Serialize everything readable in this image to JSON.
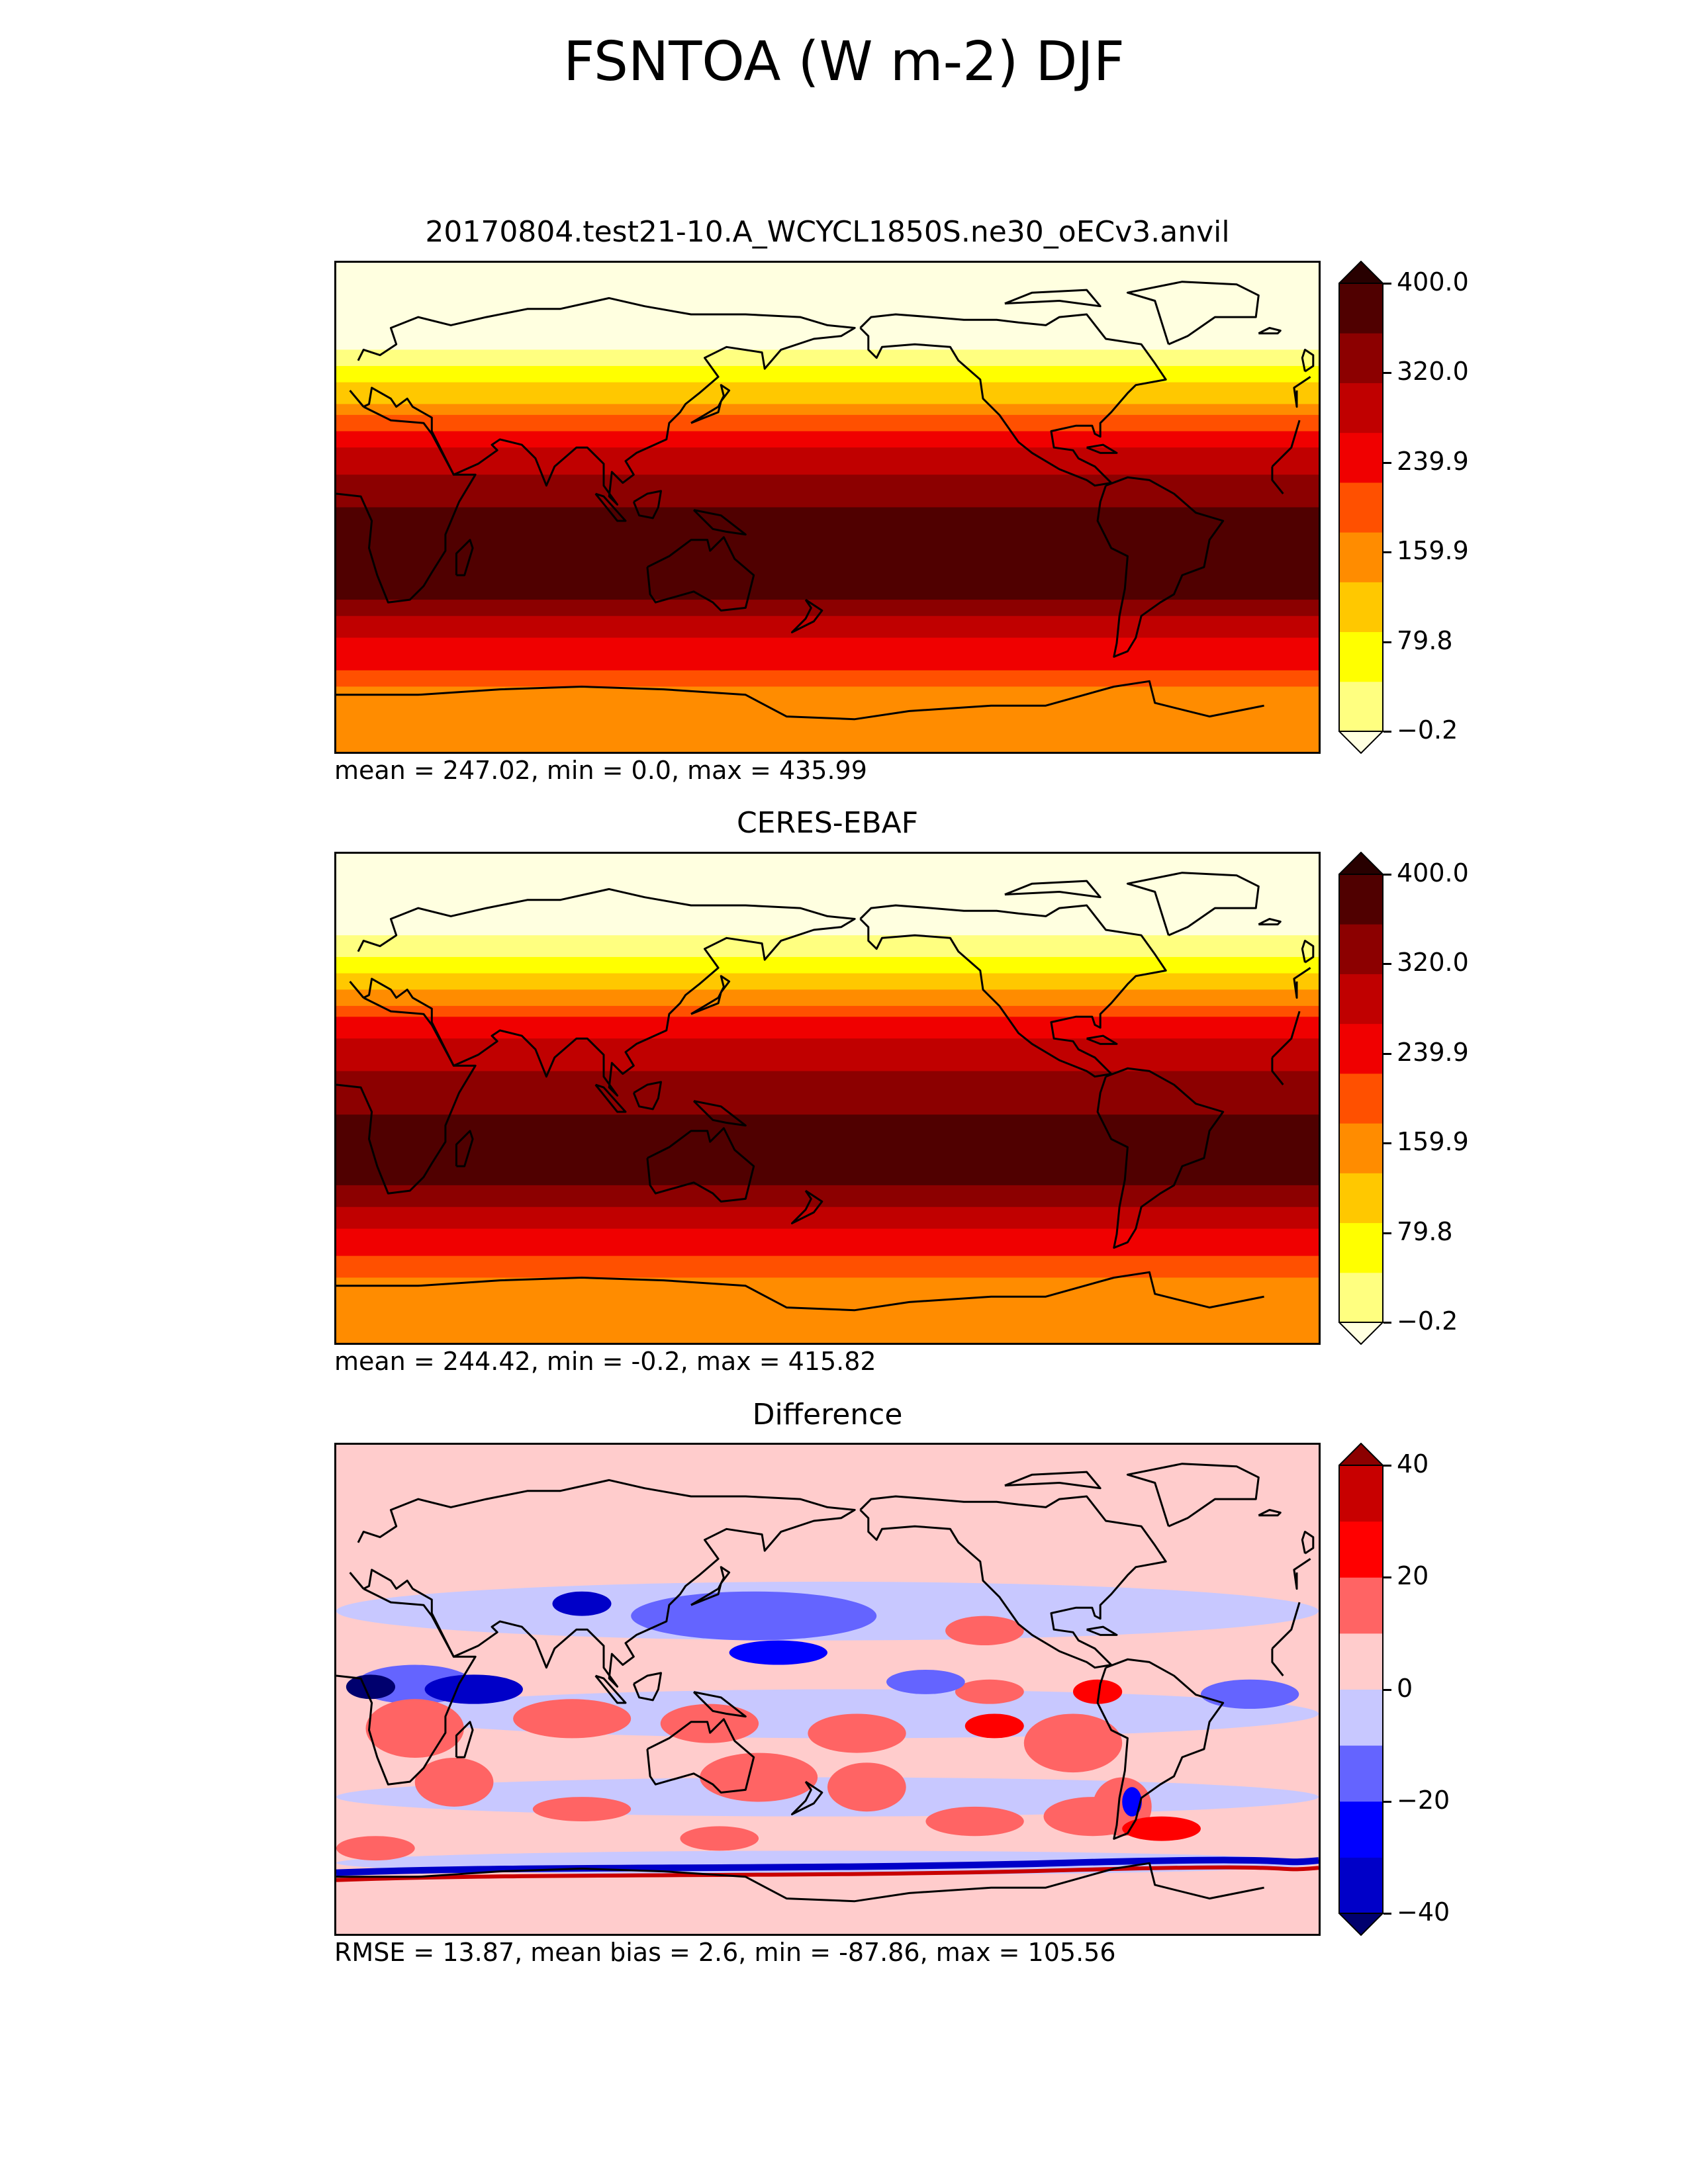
{
  "title": "FSNTOA (W m-2) DJF",
  "chart_data": [
    {
      "type": "heatmap",
      "title": "20170804.test21-10.A_WCYCL1850S.ne30_oECv3.anvil",
      "stats": "mean = 247.02, min = 0.0, max = 435.99",
      "colorbar": {
        "levels": [
          -0.2,
          39.8,
          79.8,
          119.9,
          159.9,
          199.9,
          239.9,
          279.9,
          320.0,
          360.0,
          400.0
        ],
        "ticks": [
          "400.0",
          "320.0",
          "239.9",
          "159.9",
          "79.8",
          "−0.2"
        ],
        "extend": "both"
      },
      "colors": [
        "#ffffe0",
        "#ffff80",
        "#ffff00",
        "#ffc800",
        "#ff8c00",
        "#ff5000",
        "#f00000",
        "#c00000",
        "#8c0000",
        "#500000",
        "#280000"
      ],
      "zonal_profile": [
        {
          "lat": 90,
          "value": 0
        },
        {
          "lat": 70,
          "value": 0
        },
        {
          "lat": 60,
          "value": 30
        },
        {
          "lat": 50,
          "value": 90
        },
        {
          "lat": 40,
          "value": 150
        },
        {
          "lat": 30,
          "value": 230
        },
        {
          "lat": 20,
          "value": 290
        },
        {
          "lat": 10,
          "value": 330
        },
        {
          "lat": 0,
          "value": 360
        },
        {
          "lat": -10,
          "value": 380
        },
        {
          "lat": -20,
          "value": 400
        },
        {
          "lat": -30,
          "value": 380
        },
        {
          "lat": -40,
          "value": 320
        },
        {
          "lat": -50,
          "value": 270
        },
        {
          "lat": -60,
          "value": 240
        },
        {
          "lat": -70,
          "value": 180
        },
        {
          "lat": -90,
          "value": 170
        }
      ]
    },
    {
      "type": "heatmap",
      "title": "CERES-EBAF",
      "stats": "mean = 244.42, min = -0.2, max = 415.82",
      "colorbar": {
        "levels": [
          -0.2,
          39.8,
          79.8,
          119.9,
          159.9,
          199.9,
          239.9,
          279.9,
          320.0,
          360.0,
          400.0
        ],
        "ticks": [
          "400.0",
          "320.0",
          "239.9",
          "159.9",
          "79.8",
          "−0.2"
        ],
        "extend": "both"
      },
      "colors": [
        "#ffffe0",
        "#ffff80",
        "#ffff00",
        "#ffc800",
        "#ff8c00",
        "#ff5000",
        "#f00000",
        "#c00000",
        "#8c0000",
        "#500000",
        "#280000"
      ],
      "zonal_profile": [
        {
          "lat": 90,
          "value": 0
        },
        {
          "lat": 70,
          "value": 0
        },
        {
          "lat": 60,
          "value": 40
        },
        {
          "lat": 50,
          "value": 95
        },
        {
          "lat": 40,
          "value": 160
        },
        {
          "lat": 30,
          "value": 235
        },
        {
          "lat": 20,
          "value": 290
        },
        {
          "lat": 10,
          "value": 320
        },
        {
          "lat": 0,
          "value": 345
        },
        {
          "lat": -10,
          "value": 370
        },
        {
          "lat": -20,
          "value": 390
        },
        {
          "lat": -30,
          "value": 375
        },
        {
          "lat": -40,
          "value": 320
        },
        {
          "lat": -50,
          "value": 270
        },
        {
          "lat": -60,
          "value": 230
        },
        {
          "lat": -70,
          "value": 175
        },
        {
          "lat": -90,
          "value": 170
        }
      ]
    },
    {
      "type": "heatmap",
      "title": "Difference",
      "stats": "RMSE = 13.87, mean bias = 2.6, min = -87.86, max = 105.56",
      "colorbar": {
        "levels": [
          -50,
          -40,
          -30,
          -20,
          -10,
          0,
          10,
          20,
          30,
          40,
          50
        ],
        "ticks": [
          "40",
          "20",
          "0",
          "−20",
          "−40"
        ],
        "extend": "both"
      },
      "colors": [
        "#00006e",
        "#0000c8",
        "#0000ff",
        "#6464ff",
        "#c8c8ff",
        "#ffcccc",
        "#ff6464",
        "#ff0000",
        "#c80000",
        "#8c0000"
      ],
      "background_value": 5
    }
  ]
}
